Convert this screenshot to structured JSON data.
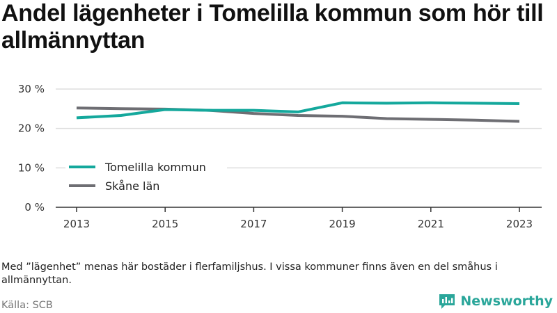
{
  "title": "Andel lägenheter i Tomelilla kommun som hör till allmännyttan",
  "note": "Med ”lägenhet” menas här bostäder i flerfamiljshus. I vissa kommuner finns även en del småhus i allmännyttan.",
  "source": "Källa: SCB",
  "brand": {
    "name": "Newsworthy",
    "icon": "newsworthy-logo-icon"
  },
  "colors": {
    "tomelilla": "#14a89c",
    "skane": "#6e6e73",
    "grid": "#dddddd",
    "axis": "#333333"
  },
  "chart_data": {
    "type": "line",
    "x": [
      2013,
      2014,
      2015,
      2016,
      2017,
      2018,
      2019,
      2020,
      2021,
      2022,
      2023
    ],
    "xticks": [
      "2013",
      "2015",
      "2017",
      "2019",
      "2021",
      "2023"
    ],
    "yticks": [
      "0 %",
      "10 %",
      "20 %",
      "30 %"
    ],
    "ylim": [
      0,
      30
    ],
    "grid": true,
    "legend_position": "left",
    "series": [
      {
        "name": "Tomelilla kommun",
        "values": [
          22.7,
          23.3,
          24.8,
          24.6,
          24.6,
          24.2,
          26.5,
          26.4,
          26.5,
          26.4,
          26.3
        ]
      },
      {
        "name": "Skåne län",
        "values": [
          25.2,
          25.0,
          24.9,
          24.6,
          23.8,
          23.3,
          23.1,
          22.5,
          22.3,
          22.1,
          21.8
        ]
      }
    ]
  }
}
